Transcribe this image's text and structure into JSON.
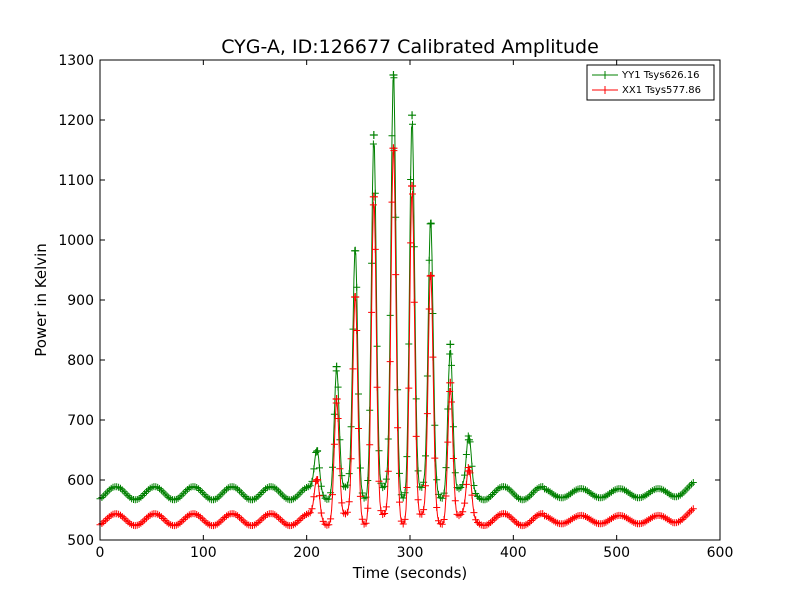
{
  "chart_data": {
    "type": "line",
    "title": "CYG-A, ID:126677 Calibrated Amplitude",
    "xlabel": "Time (seconds)",
    "ylabel": "Power in Kelvin",
    "xlim": [
      0,
      600
    ],
    "ylim": [
      500,
      1300
    ],
    "xticks": [
      0,
      100,
      200,
      300,
      400,
      500,
      600
    ],
    "yticks": [
      500,
      600,
      700,
      800,
      900,
      1000,
      1100,
      1200,
      1300
    ],
    "grid": false,
    "legend_position": "top-right",
    "marker": "+",
    "time_span": [
      0,
      575
    ],
    "series": [
      {
        "name": "YY1 Tsys626.16",
        "color": "#008000",
        "baseline": 578,
        "ripple_amplitude": 11,
        "ripple_period_s": 37.5,
        "end_value": 590,
        "peaks": [
          {
            "x": 210,
            "y": 648
          },
          {
            "x": 229,
            "y": 789
          },
          {
            "x": 247,
            "y": 982
          },
          {
            "x": 265,
            "y": 1175
          },
          {
            "x": 284,
            "y": 1275
          },
          {
            "x": 302,
            "y": 1208
          },
          {
            "x": 320,
            "y": 1027
          },
          {
            "x": 339,
            "y": 826
          },
          {
            "x": 357,
            "y": 667
          }
        ]
      },
      {
        "name": "XX1 Tsys577.86",
        "color": "#ff0000",
        "baseline": 534,
        "ripple_amplitude": 10,
        "ripple_period_s": 37.5,
        "end_value": 547,
        "peaks": [
          {
            "x": 210,
            "y": 600
          },
          {
            "x": 229,
            "y": 735
          },
          {
            "x": 247,
            "y": 905
          },
          {
            "x": 265,
            "y": 1072
          },
          {
            "x": 284,
            "y": 1153
          },
          {
            "x": 302,
            "y": 1090
          },
          {
            "x": 320,
            "y": 940
          },
          {
            "x": 339,
            "y": 762
          },
          {
            "x": 357,
            "y": 615
          }
        ]
      }
    ]
  }
}
